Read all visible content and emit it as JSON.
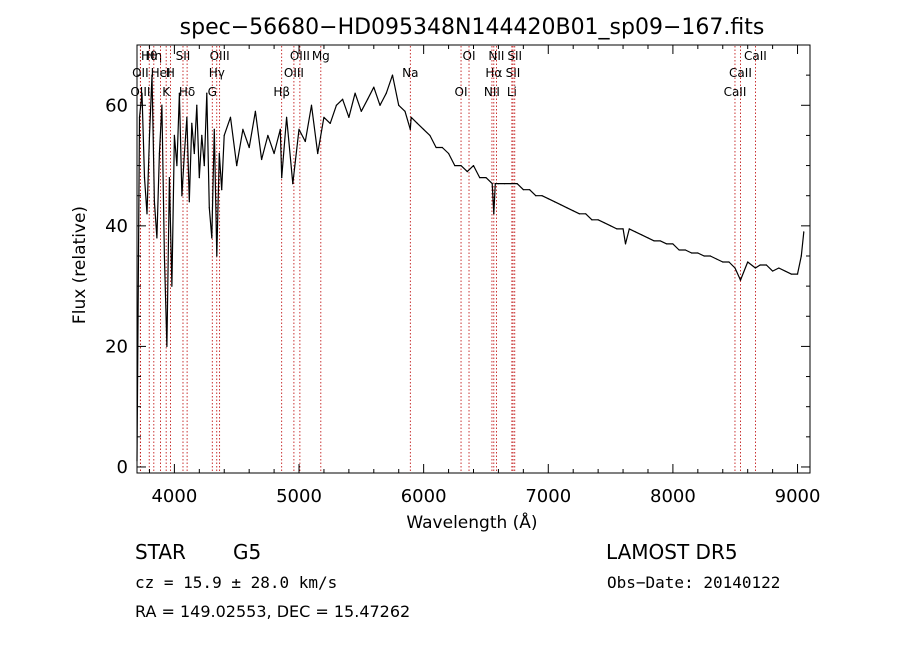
{
  "chart_data": {
    "type": "line",
    "title": "spec−56680−HD095348N144420B01_sp09−167.fits",
    "xlabel": "Wavelength (Å)",
    "ylabel": "Flux (relative)",
    "xlim": [
      3700,
      9100
    ],
    "ylim": [
      -1,
      70
    ],
    "xticks": [
      4000,
      5000,
      6000,
      7000,
      8000,
      9000
    ],
    "yticks": [
      0,
      20,
      40,
      60
    ],
    "grid": false,
    "line_color": "#000000",
    "marker_color": "#bb0000",
    "series": [
      {
        "x": [
          3700,
          3720,
          3740,
          3760,
          3780,
          3800,
          3820,
          3840,
          3860,
          3880,
          3900,
          3920,
          3940,
          3960,
          3980,
          4000,
          4020,
          4040,
          4060,
          4080,
          4100,
          4120,
          4140,
          4160,
          4180,
          4200,
          4220,
          4240,
          4260,
          4280,
          4300,
          4320,
          4340,
          4360,
          4380,
          4400,
          4450,
          4500,
          4550,
          4600,
          4650,
          4700,
          4750,
          4800,
          4850,
          4861,
          4900,
          4950,
          5000,
          5050,
          5100,
          5150,
          5200,
          5250,
          5300,
          5350,
          5400,
          5450,
          5500,
          5550,
          5600,
          5650,
          5700,
          5750,
          5800,
          5850,
          5893,
          5900,
          5950,
          6000,
          6050,
          6100,
          6150,
          6200,
          6250,
          6300,
          6350,
          6400,
          6450,
          6500,
          6550,
          6563,
          6575,
          6600,
          6650,
          6700,
          6750,
          6800,
          6850,
          6900,
          6950,
          7000,
          7050,
          7100,
          7150,
          7200,
          7250,
          7300,
          7350,
          7400,
          7450,
          7500,
          7550,
          7600,
          7620,
          7650,
          7700,
          7750,
          7800,
          7850,
          7900,
          7950,
          8000,
          8050,
          8100,
          8150,
          8200,
          8250,
          8300,
          8350,
          8400,
          8450,
          8498,
          8542,
          8600,
          8662,
          8700,
          8750,
          8800,
          8850,
          8900,
          8950,
          9000,
          9030,
          9050
        ],
        "y": [
          1,
          58,
          62,
          48,
          42,
          55,
          65,
          44,
          38,
          52,
          60,
          35,
          20,
          48,
          30,
          55,
          50,
          62,
          45,
          52,
          58,
          44,
          57,
          52,
          60,
          48,
          55,
          50,
          62,
          43,
          38,
          56,
          35,
          52,
          46,
          55,
          58,
          50,
          56,
          53,
          59,
          51,
          55,
          52,
          56,
          48,
          58,
          47,
          56,
          54,
          60,
          52,
          58,
          57,
          60,
          61,
          58,
          62,
          59,
          61,
          63,
          60,
          62,
          65,
          60,
          59,
          56,
          58,
          57,
          56,
          55,
          53,
          53,
          52,
          50,
          50,
          49,
          50,
          48,
          48,
          47,
          42,
          47,
          47,
          47,
          47,
          47,
          46,
          46,
          45,
          45,
          44.5,
          44,
          43.5,
          43,
          42.5,
          42,
          42,
          41,
          41,
          40.5,
          40,
          39.5,
          39.5,
          37,
          39.5,
          39,
          38.5,
          38,
          37.5,
          37.5,
          37,
          37,
          36,
          36,
          35.5,
          35.5,
          35,
          35,
          34.5,
          34,
          34,
          33,
          31,
          34,
          33,
          33.5,
          33.5,
          32.5,
          33,
          32.5,
          32,
          32,
          35,
          39
        ]
      }
    ],
    "lines": [
      {
        "label": "Hθ",
        "x": 3798
      },
      {
        "label": "OII",
        "x": 3727
      },
      {
        "label": "OIII",
        "x": 3727
      },
      {
        "label": "Hη",
        "x": 3835
      },
      {
        "label": "HeI",
        "x": 3889
      },
      {
        "label": "K",
        "x": 3934
      },
      {
        "label": "SII",
        "x": 4069
      },
      {
        "label": "H",
        "x": 3968
      },
      {
        "label": "Hδ",
        "x": 4102
      },
      {
        "label": "OIII",
        "x": 4363
      },
      {
        "label": "Hγ",
        "x": 4340
      },
      {
        "label": "G",
        "x": 4304
      },
      {
        "label": "OIII",
        "x": 5007
      },
      {
        "label": "OIII",
        "x": 4959
      },
      {
        "label": "Hβ",
        "x": 4861
      },
      {
        "label": "Mg",
        "x": 5175
      },
      {
        "label": "Na",
        "x": 5893
      },
      {
        "label": "OI",
        "x": 6300
      },
      {
        "label": "OI",
        "x": 6364
      },
      {
        "label": "Hα",
        "x": 6563
      },
      {
        "label": "NII",
        "x": 6548
      },
      {
        "label": "NII",
        "x": 6584
      },
      {
        "label": "SII",
        "x": 6717
      },
      {
        "label": "Li",
        "x": 6708
      },
      {
        "label": "SII",
        "x": 6731
      },
      {
        "label": "CaII",
        "x": 8542
      },
      {
        "label": "CaII",
        "x": 8498
      },
      {
        "label": "CaII",
        "x": 8662
      }
    ]
  },
  "info": {
    "object": "STAR",
    "subclass": "G5",
    "survey": "LAMOST DR5",
    "cz": "cz = 15.9 ± 28.0 km/s",
    "obs_date": "Obs−Date: 20140122",
    "radec": "RA = 149.02553, DEC =  15.47262"
  }
}
